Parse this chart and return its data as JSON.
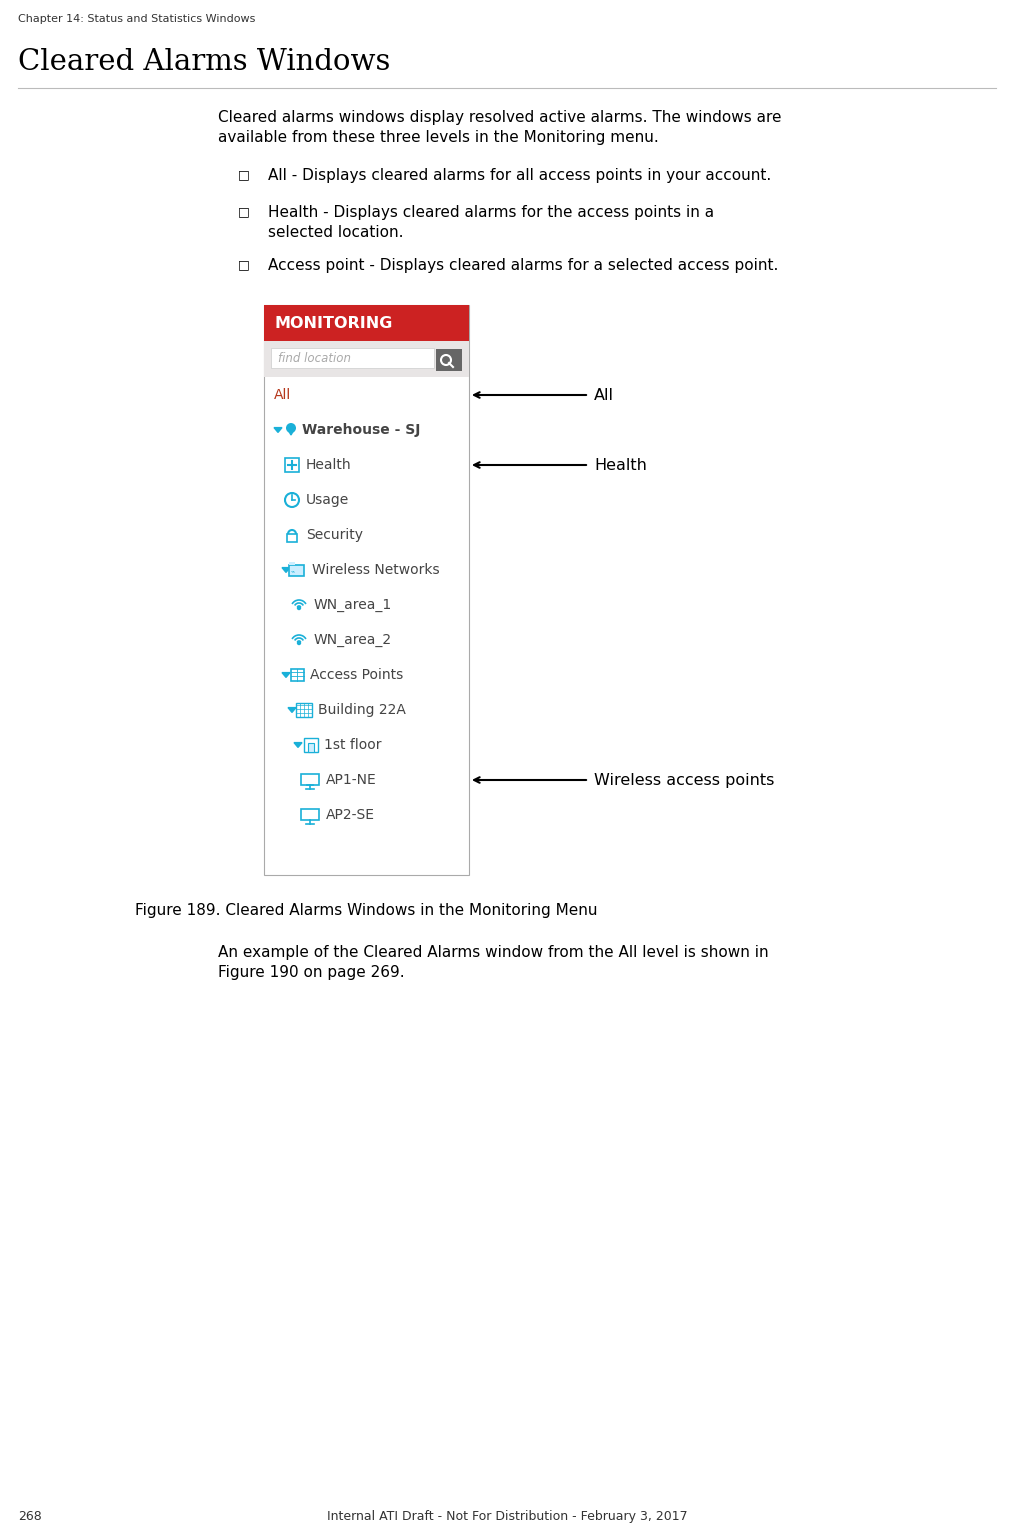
{
  "page_header": "Chapter 14: Status and Statistics Windows",
  "section_title": "Cleared Alarms Windows",
  "body_text_1a": "Cleared alarms windows display resolved active alarms. The windows are",
  "body_text_1b": "available from these three levels in the Monitoring menu.",
  "bullet_1": "All - Displays cleared alarms for all access points in your account.",
  "bullet_2a": "Health - Displays cleared alarms for the access points in a",
  "bullet_2b": "selected location.",
  "bullet_3": "Access point - Displays cleared alarms for a selected access point.",
  "figure_caption": "Figure 189. Cleared Alarms Windows in the Monitoring Menu",
  "body_text_2a": "An example of the Cleared Alarms window from the All level is shown in",
  "body_text_2b": "Figure 190 on page 269.",
  "page_number": "268",
  "footer_text": "Internal ATI Draft - Not For Distribution - February 3, 2017",
  "annotation_all": "All",
  "annotation_health": "Health",
  "annotation_wireless": "Wireless access points",
  "monitoring_header_color": "#cc2222",
  "monitoring_header_text": "MONITORING",
  "find_location_placeholder": "find location",
  "cyan_color": "#1ab0d8",
  "text_color": "#000000",
  "bg_color": "#ffffff",
  "menu_bg": "#f5f3f3",
  "dark_gray": "#555555",
  "item_gray": "#444444"
}
